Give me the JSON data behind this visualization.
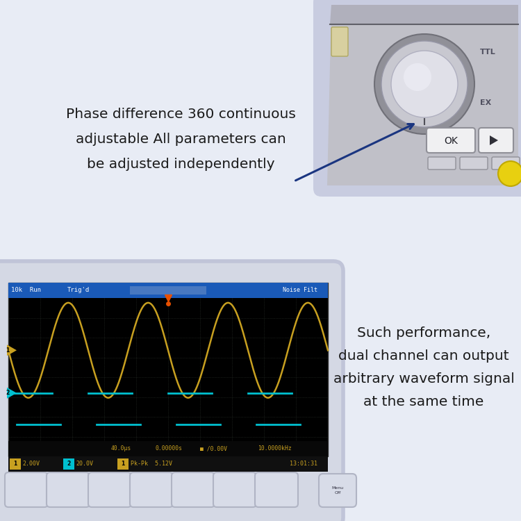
{
  "bg_color": "#e8ecf5",
  "title_text1": "Phase difference 360 continuous",
  "title_text2": "adjustable All parameters can",
  "title_text3": "be adjusted independently",
  "text2_line1": "Such performance,",
  "text2_line2": "dual channel can output",
  "text2_line3": "arbitrary waveform signal",
  "text2_line4": "at the same time",
  "text_color": "#1a1a1a",
  "text_fontsize": 14.5,
  "text2_fontsize": 14.5,
  "osc_bg": "#000000",
  "osc_header_bg": "#1a5fb4",
  "sine_color": "#c8a020",
  "square_color": "#00c0d0",
  "grid_color": "#252525",
  "device_bg": "#bebec8",
  "arrow_color": "#1a3580",
  "status_text": "#c8a020"
}
